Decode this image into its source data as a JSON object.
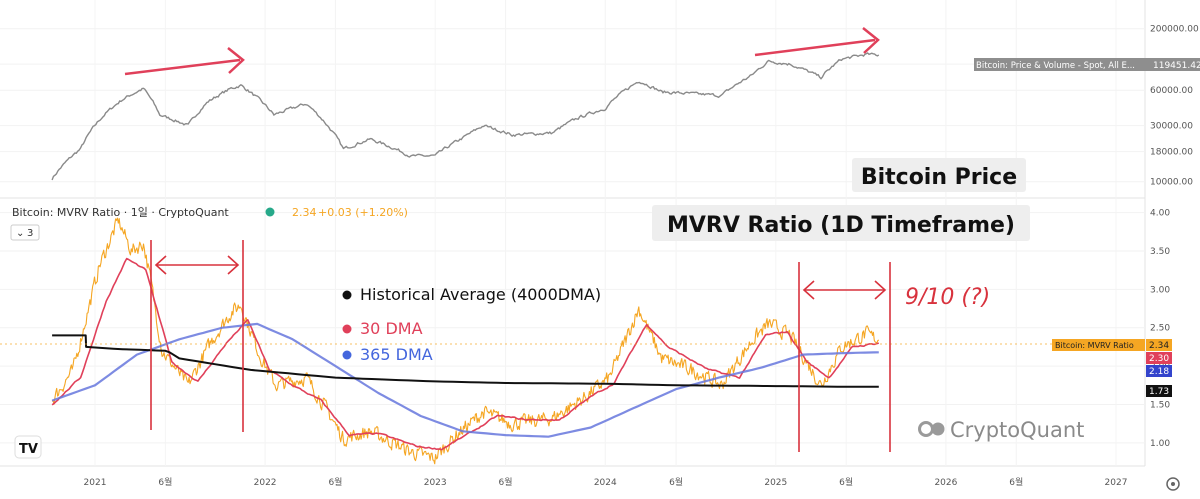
{
  "chart_data": [
    {
      "type": "line",
      "panel_label": "Bitcoin Price",
      "scale": "log",
      "ylim": [
        8500,
        300000
      ],
      "y_ticks": [
        10000,
        18000,
        30000,
        60000,
        100000,
        200000
      ],
      "y_tick_labels": [
        "10000.00",
        "18000.00",
        "30000.00",
        "60000.00",
        "100000.00",
        "200000.00"
      ],
      "price_tag": "Bitcoin: Price & Volume - Spot, All E...",
      "price_value": "119451.42",
      "series": [
        {
          "color": "#8a8a8a",
          "x": [
            "2020-10-01",
            "2020-12-01",
            "2021-01-15",
            "2021-03-01",
            "2021-04-15",
            "2021-05-20",
            "2021-07-20",
            "2021-09-01",
            "2021-10-20",
            "2021-11-10",
            "2022-01-20",
            "2022-03-30",
            "2022-05-15",
            "2022-06-18",
            "2022-08-15",
            "2022-11-10",
            "2023-01-01",
            "2023-03-01",
            "2023-04-15",
            "2023-06-15",
            "2023-09-10",
            "2023-11-01",
            "2023-12-31",
            "2024-03-14",
            "2024-05-01",
            "2024-07-05",
            "2024-09-06",
            "2024-11-10",
            "2024-12-17",
            "2025-02-01",
            "2025-04-08",
            "2025-05-22",
            "2025-07-14",
            "2025-08-10"
          ],
          "y": [
            10600,
            19000,
            35000,
            50000,
            62000,
            37000,
            30000,
            48000,
            62000,
            66000,
            37000,
            46000,
            30000,
            19000,
            23000,
            16500,
            16600,
            23500,
            30000,
            25000,
            26000,
            34500,
            42000,
            72000,
            58000,
            56000,
            54000,
            80000,
            106000,
            100000,
            77000,
            110000,
            121000,
            119451
          ]
        }
      ]
    },
    {
      "type": "line",
      "title": "MVRV Ratio (1D Timeframe)",
      "header": "Bitcoin: MVRV Ratio · 1일 · CryptoQuant",
      "header_value": "2.34",
      "header_change": "+0.03 (+1.20%)",
      "collapse_label": "3",
      "ylim": [
        0.75,
        4.1
      ],
      "y_ticks": [
        1.0,
        1.5,
        2.0,
        2.5,
        3.0,
        3.5,
        4.0
      ],
      "y_tick_labels": [
        "1.00",
        "1.50",
        "2.00",
        "2.50",
        "3.00",
        "3.50",
        "4.00"
      ],
      "x_tick_labels": [
        "2021",
        "6월",
        "2022",
        "6월",
        "2023",
        "6월",
        "2024",
        "6월",
        "2025",
        "6월",
        "2026",
        "6월",
        "2027"
      ],
      "x_tick_dates": [
        "2021-01-01",
        "2021-06-01",
        "2022-01-01",
        "2022-06-01",
        "2023-01-01",
        "2023-06-01",
        "2024-01-01",
        "2024-06-01",
        "2025-01-01",
        "2025-06-01",
        "2026-01-01",
        "2026-06-01",
        "2027-01-01"
      ],
      "legend": [
        {
          "label": "Historical Average (4000DMA)",
          "color": "#111111"
        },
        {
          "label": "30 DMA",
          "color": "#e0405a"
        },
        {
          "label": "365 DMA",
          "color": "#4466dd"
        }
      ],
      "price_tags": [
        {
          "label": "Bitcoin: MVRV Ratio",
          "value": "2.34",
          "color": "#f5a623"
        },
        {
          "value": "2.30",
          "color": "#e0405a"
        },
        {
          "value": "2.18",
          "color": "#3344cc"
        },
        {
          "value": "1.73",
          "color": "#111111"
        }
      ],
      "annotation": "9/10 (?)",
      "watermark": "CryptoQuant",
      "series": [
        {
          "color": "#f5a623",
          "x": [
            "2020-10-01",
            "2020-11-15",
            "2021-01-10",
            "2021-02-20",
            "2021-03-20",
            "2021-04-15",
            "2021-05-01",
            "2021-05-25",
            "2021-07-20",
            "2021-09-05",
            "2021-10-20",
            "2021-11-10",
            "2021-12-20",
            "2022-01-24",
            "2022-03-30",
            "2022-05-12",
            "2022-06-18",
            "2022-08-15",
            "2022-11-10",
            "2022-12-31",
            "2023-02-15",
            "2023-04-15",
            "2023-06-15",
            "2023-09-10",
            "2023-11-20",
            "2024-01-10",
            "2024-03-13",
            "2024-05-01",
            "2024-07-05",
            "2024-09-06",
            "2024-11-13",
            "2024-12-17",
            "2025-02-01",
            "2025-04-08",
            "2025-05-22",
            "2025-07-14",
            "2025-08-10"
          ],
          "y": [
            1.55,
            1.95,
            3.3,
            3.9,
            3.5,
            3.6,
            3.1,
            2.2,
            1.75,
            2.3,
            2.7,
            2.8,
            2.15,
            1.75,
            1.85,
            1.45,
            1.05,
            1.15,
            0.88,
            0.8,
            1.1,
            1.4,
            1.25,
            1.32,
            1.6,
            1.85,
            2.75,
            2.1,
            1.95,
            1.75,
            2.35,
            2.55,
            2.4,
            1.75,
            2.25,
            2.42,
            2.34
          ]
        },
        {
          "name": "30 DMA",
          "color": "#e0405a",
          "x": [
            "2020-10-01",
            "2020-12-01",
            "2021-01-25",
            "2021-03-10",
            "2021-04-20",
            "2021-06-15",
            "2021-08-10",
            "2021-10-10",
            "2021-11-25",
            "2022-01-10",
            "2022-03-01",
            "2022-05-01",
            "2022-07-01",
            "2022-09-01",
            "2022-11-25",
            "2023-01-15",
            "2023-03-15",
            "2023-05-15",
            "2023-07-15",
            "2023-09-25",
            "2023-12-01",
            "2024-01-20",
            "2024-03-30",
            "2024-05-15",
            "2024-08-10",
            "2024-10-15",
            "2024-12-10",
            "2025-01-25",
            "2025-03-10",
            "2025-04-25",
            "2025-06-15",
            "2025-08-10"
          ],
          "y": [
            1.5,
            1.85,
            2.85,
            3.4,
            3.25,
            2.05,
            1.8,
            2.3,
            2.6,
            1.95,
            1.75,
            1.55,
            1.1,
            1.12,
            0.95,
            0.92,
            1.12,
            1.35,
            1.3,
            1.3,
            1.6,
            1.78,
            2.55,
            2.25,
            1.95,
            1.85,
            2.4,
            2.45,
            2.05,
            1.85,
            2.25,
            2.3
          ]
        },
        {
          "name": "365 DMA",
          "color": "#6677dd",
          "x": [
            "2020-10-01",
            "2021-01-01",
            "2021-04-01",
            "2021-07-01",
            "2021-10-01",
            "2021-12-15",
            "2022-03-01",
            "2022-06-01",
            "2022-09-01",
            "2022-12-01",
            "2023-03-01",
            "2023-06-01",
            "2023-09-01",
            "2023-12-01",
            "2024-03-01",
            "2024-06-01",
            "2024-09-01",
            "2024-12-01",
            "2025-03-01",
            "2025-06-01",
            "2025-08-10"
          ],
          "y": [
            1.55,
            1.75,
            2.15,
            2.35,
            2.5,
            2.55,
            2.35,
            2.0,
            1.65,
            1.35,
            1.15,
            1.1,
            1.08,
            1.2,
            1.45,
            1.7,
            1.85,
            1.98,
            2.15,
            2.17,
            2.18
          ]
        },
        {
          "name": "Historical Average (4000DMA)",
          "color": "#111111",
          "x": [
            "2020-10-01",
            "2020-12-12",
            "2020-12-13",
            "2021-03-01",
            "2021-06-01",
            "2021-06-10",
            "2021-07-01",
            "2021-12-01",
            "2022-06-01",
            "2023-01-01",
            "2023-06-01",
            "2024-01-01",
            "2024-06-01",
            "2025-01-01",
            "2025-06-01",
            "2025-08-10"
          ],
          "y": [
            2.4,
            2.4,
            2.25,
            2.22,
            2.2,
            2.18,
            2.1,
            1.95,
            1.85,
            1.8,
            1.78,
            1.77,
            1.75,
            1.74,
            1.73,
            1.73
          ]
        }
      ]
    }
  ]
}
